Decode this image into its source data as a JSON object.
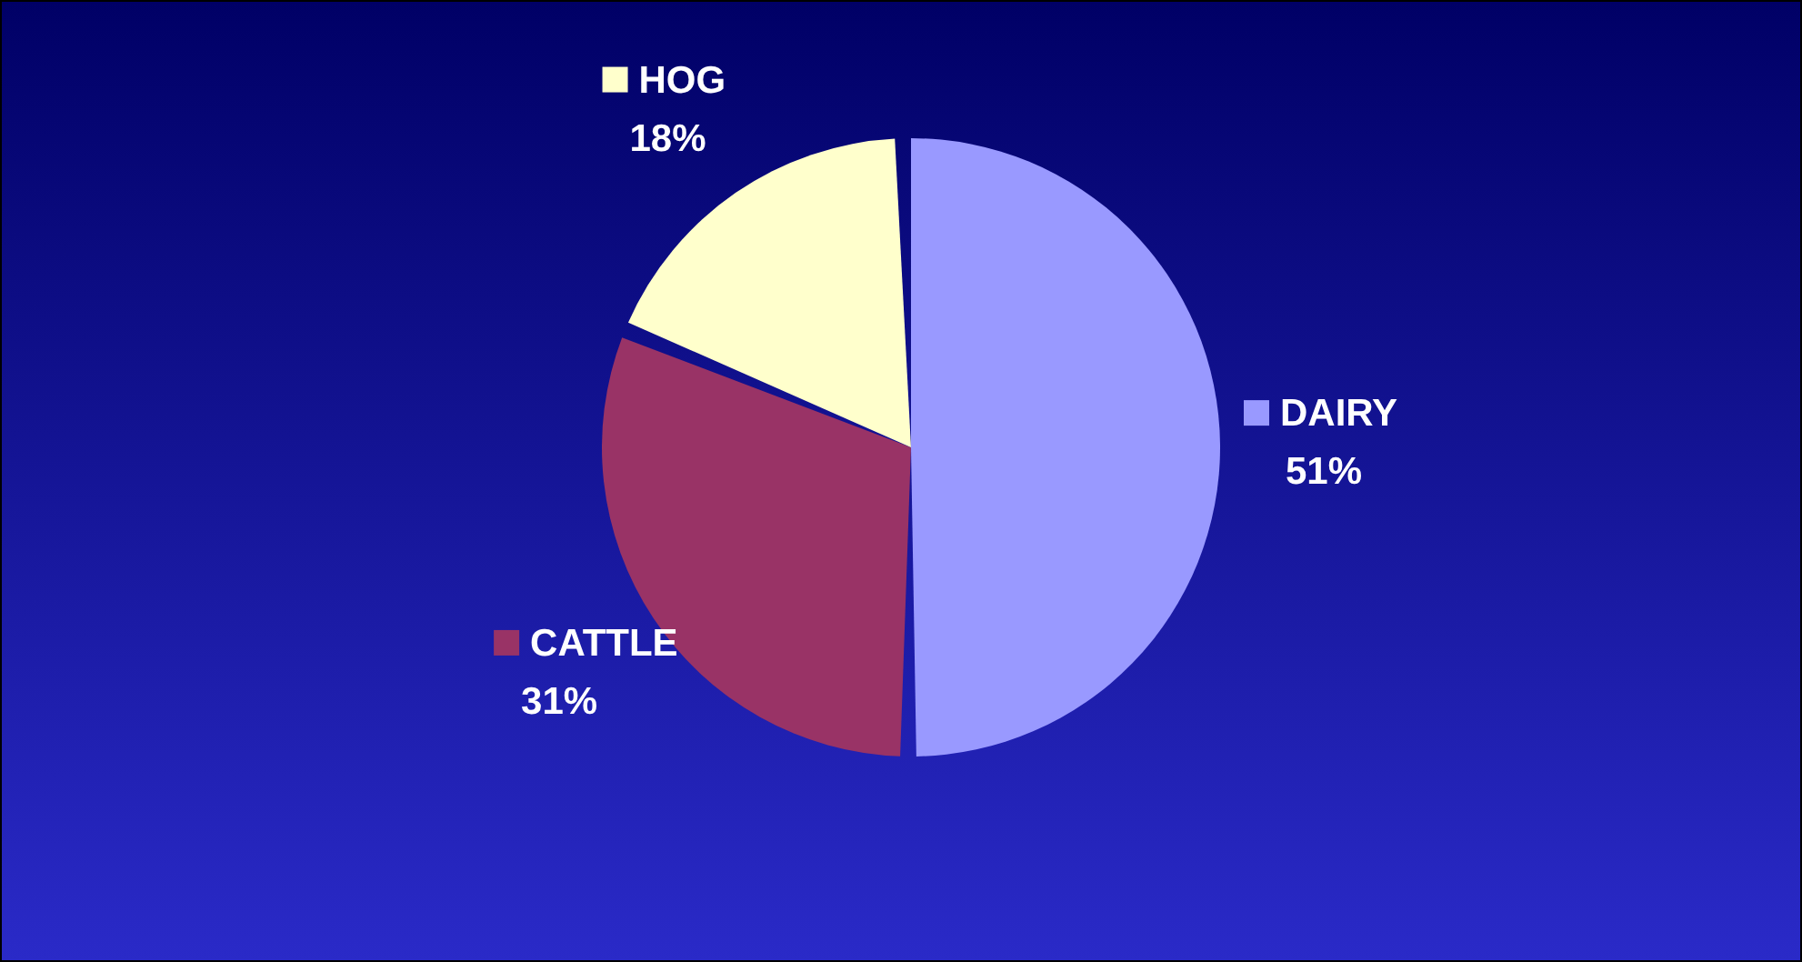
{
  "chart_data": {
    "type": "pie",
    "categories": [
      "DAIRY",
      "CATTLE",
      "HOG"
    ],
    "values": [
      51,
      31,
      18
    ],
    "colors": [
      "#9999ff",
      "#993366",
      "#ffffcc"
    ],
    "value_labels": [
      "51%",
      "31%",
      "18%"
    ],
    "legend": "center"
  }
}
